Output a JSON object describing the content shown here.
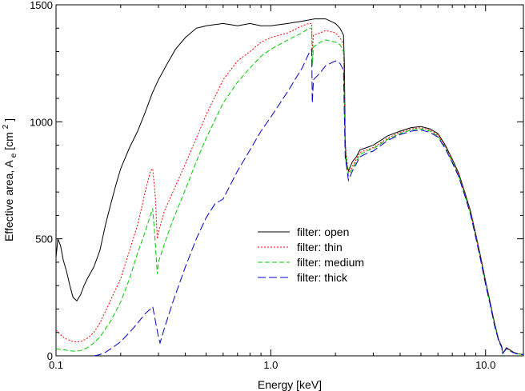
{
  "chart_data": {
    "type": "line",
    "title": "",
    "xlabel": "Energy [keV]",
    "ylabel": {
      "main": "Effective area, A",
      "sub": "e",
      "unit_open": " [cm",
      "sup": "2",
      "unit_close": "]"
    },
    "xscale": "log",
    "xlim": [
      0.1,
      15
    ],
    "ylim": [
      0,
      1500
    ],
    "x_ticks": [
      {
        "v": 0.1,
        "label": "0.1"
      },
      {
        "v": 1.0,
        "label": "1.0"
      },
      {
        "v": 10.0,
        "label": "10.0"
      }
    ],
    "y_ticks": [
      {
        "v": 0,
        "label": "0"
      },
      {
        "v": 500,
        "label": "500"
      },
      {
        "v": 1000,
        "label": "1000"
      },
      {
        "v": 1500,
        "label": "1500"
      }
    ],
    "grid": false,
    "legend_position": "center",
    "series": [
      {
        "name": "filter: open",
        "color": "#000000",
        "dash": "",
        "points": [
          [
            0.1,
            420
          ],
          [
            0.102,
            500
          ],
          [
            0.105,
            470
          ],
          [
            0.108,
            410
          ],
          [
            0.112,
            360
          ],
          [
            0.116,
            300
          ],
          [
            0.12,
            250
          ],
          [
            0.125,
            235
          ],
          [
            0.13,
            260
          ],
          [
            0.135,
            300
          ],
          [
            0.14,
            330
          ],
          [
            0.15,
            380
          ],
          [
            0.16,
            450
          ],
          [
            0.17,
            560
          ],
          [
            0.18,
            650
          ],
          [
            0.19,
            730
          ],
          [
            0.2,
            800
          ],
          [
            0.22,
            890
          ],
          [
            0.24,
            960
          ],
          [
            0.26,
            1040
          ],
          [
            0.28,
            1120
          ],
          [
            0.3,
            1180
          ],
          [
            0.33,
            1250
          ],
          [
            0.36,
            1310
          ],
          [
            0.4,
            1360
          ],
          [
            0.45,
            1400
          ],
          [
            0.5,
            1410
          ],
          [
            0.6,
            1420
          ],
          [
            0.7,
            1410
          ],
          [
            0.8,
            1420
          ],
          [
            0.9,
            1410
          ],
          [
            1.0,
            1410
          ],
          [
            1.2,
            1420
          ],
          [
            1.4,
            1430
          ],
          [
            1.6,
            1440
          ],
          [
            1.8,
            1440
          ],
          [
            2.0,
            1420
          ],
          [
            2.1,
            1400
          ],
          [
            2.18,
            1370
          ],
          [
            2.2,
            1250
          ],
          [
            2.22,
            930
          ],
          [
            2.24,
            830
          ],
          [
            2.3,
            790
          ],
          [
            2.4,
            830
          ],
          [
            2.5,
            850
          ],
          [
            2.6,
            880
          ],
          [
            2.8,
            890
          ],
          [
            3.0,
            900
          ],
          [
            3.5,
            940
          ],
          [
            4.0,
            960
          ],
          [
            4.5,
            975
          ],
          [
            5.0,
            980
          ],
          [
            5.5,
            970
          ],
          [
            6.0,
            950
          ],
          [
            6.5,
            900
          ],
          [
            7.0,
            840
          ],
          [
            7.5,
            780
          ],
          [
            8.0,
            700
          ],
          [
            8.5,
            620
          ],
          [
            9.0,
            520
          ],
          [
            9.5,
            420
          ],
          [
            10.0,
            320
          ],
          [
            10.5,
            230
          ],
          [
            11.0,
            140
          ],
          [
            11.5,
            70
          ],
          [
            11.9,
            40
          ],
          [
            12.0,
            10
          ],
          [
            12.5,
            35
          ],
          [
            13.0,
            25
          ],
          [
            13.5,
            15
          ],
          [
            14.0,
            10
          ],
          [
            15.0,
            5
          ]
        ]
      },
      {
        "name": "filter: thin",
        "color": "#ff0000",
        "dash": "2,2",
        "points": [
          [
            0.1,
            110
          ],
          [
            0.105,
            90
          ],
          [
            0.11,
            75
          ],
          [
            0.12,
            60
          ],
          [
            0.13,
            60
          ],
          [
            0.14,
            75
          ],
          [
            0.15,
            100
          ],
          [
            0.16,
            140
          ],
          [
            0.17,
            190
          ],
          [
            0.18,
            240
          ],
          [
            0.2,
            330
          ],
          [
            0.22,
            450
          ],
          [
            0.24,
            560
          ],
          [
            0.26,
            700
          ],
          [
            0.275,
            790
          ],
          [
            0.282,
            800
          ],
          [
            0.29,
            680
          ],
          [
            0.296,
            500
          ],
          [
            0.3,
            530
          ],
          [
            0.32,
            620
          ],
          [
            0.35,
            700
          ],
          [
            0.4,
            820
          ],
          [
            0.45,
            930
          ],
          [
            0.5,
            1030
          ],
          [
            0.6,
            1180
          ],
          [
            0.7,
            1260
          ],
          [
            0.8,
            1300
          ],
          [
            0.9,
            1340
          ],
          [
            1.0,
            1360
          ],
          [
            1.2,
            1380
          ],
          [
            1.4,
            1410
          ],
          [
            1.5,
            1420
          ],
          [
            1.55,
            1420
          ],
          [
            1.56,
            1300
          ],
          [
            1.58,
            1370
          ],
          [
            1.7,
            1380
          ],
          [
            1.8,
            1390
          ],
          [
            2.0,
            1380
          ],
          [
            2.1,
            1360
          ],
          [
            2.18,
            1330
          ],
          [
            2.22,
            900
          ],
          [
            2.3,
            780
          ],
          [
            2.4,
            810
          ],
          [
            2.5,
            840
          ],
          [
            2.6,
            870
          ],
          [
            2.8,
            880
          ],
          [
            3.0,
            890
          ],
          [
            3.5,
            930
          ],
          [
            4.0,
            955
          ],
          [
            4.5,
            970
          ],
          [
            5.0,
            975
          ],
          [
            5.5,
            965
          ],
          [
            6.0,
            945
          ],
          [
            6.5,
            895
          ],
          [
            7.0,
            835
          ],
          [
            7.5,
            775
          ],
          [
            8.0,
            695
          ],
          [
            8.5,
            615
          ],
          [
            9.0,
            515
          ],
          [
            9.5,
            415
          ],
          [
            10.0,
            315
          ],
          [
            10.5,
            225
          ],
          [
            11.0,
            135
          ],
          [
            11.5,
            68
          ],
          [
            11.9,
            38
          ],
          [
            12.0,
            10
          ],
          [
            12.5,
            33
          ],
          [
            13.0,
            23
          ],
          [
            13.5,
            14
          ],
          [
            14.0,
            9
          ],
          [
            15.0,
            5
          ]
        ]
      },
      {
        "name": "filter: medium",
        "color": "#00cc00",
        "dash": "6,3",
        "points": [
          [
            0.1,
            30
          ],
          [
            0.11,
            25
          ],
          [
            0.12,
            20
          ],
          [
            0.13,
            22
          ],
          [
            0.14,
            35
          ],
          [
            0.15,
            55
          ],
          [
            0.16,
            80
          ],
          [
            0.17,
            115
          ],
          [
            0.18,
            150
          ],
          [
            0.2,
            230
          ],
          [
            0.22,
            330
          ],
          [
            0.24,
            440
          ],
          [
            0.26,
            530
          ],
          [
            0.275,
            600
          ],
          [
            0.282,
            630
          ],
          [
            0.29,
            480
          ],
          [
            0.296,
            350
          ],
          [
            0.3,
            400
          ],
          [
            0.32,
            480
          ],
          [
            0.35,
            580
          ],
          [
            0.4,
            710
          ],
          [
            0.45,
            830
          ],
          [
            0.5,
            930
          ],
          [
            0.6,
            1080
          ],
          [
            0.7,
            1170
          ],
          [
            0.8,
            1230
          ],
          [
            0.9,
            1280
          ],
          [
            1.0,
            1310
          ],
          [
            1.2,
            1350
          ],
          [
            1.4,
            1380
          ],
          [
            1.5,
            1400
          ],
          [
            1.55,
            1400
          ],
          [
            1.56,
            1240
          ],
          [
            1.58,
            1320
          ],
          [
            1.7,
            1340
          ],
          [
            1.8,
            1350
          ],
          [
            2.0,
            1340
          ],
          [
            2.1,
            1330
          ],
          [
            2.18,
            1300
          ],
          [
            2.22,
            880
          ],
          [
            2.3,
            770
          ],
          [
            2.4,
            800
          ],
          [
            2.5,
            830
          ],
          [
            2.6,
            860
          ],
          [
            2.8,
            875
          ],
          [
            3.0,
            885
          ],
          [
            3.5,
            925
          ],
          [
            4.0,
            950
          ],
          [
            4.5,
            965
          ],
          [
            5.0,
            970
          ],
          [
            5.5,
            960
          ],
          [
            6.0,
            940
          ],
          [
            6.5,
            890
          ],
          [
            7.0,
            830
          ],
          [
            7.5,
            770
          ],
          [
            8.0,
            690
          ],
          [
            8.5,
            610
          ],
          [
            9.0,
            510
          ],
          [
            9.5,
            410
          ],
          [
            10.0,
            310
          ],
          [
            10.5,
            222
          ],
          [
            11.0,
            132
          ],
          [
            11.5,
            66
          ],
          [
            11.9,
            36
          ],
          [
            12.0,
            9
          ],
          [
            12.5,
            32
          ],
          [
            13.0,
            22
          ],
          [
            13.5,
            13
          ],
          [
            14.0,
            9
          ],
          [
            15.0,
            5
          ]
        ]
      },
      {
        "name": "filter: thick",
        "color": "#0000cc",
        "dash": "10,4",
        "points": [
          [
            0.15,
            0
          ],
          [
            0.16,
            5
          ],
          [
            0.17,
            15
          ],
          [
            0.18,
            30
          ],
          [
            0.2,
            60
          ],
          [
            0.22,
            100
          ],
          [
            0.24,
            140
          ],
          [
            0.26,
            180
          ],
          [
            0.275,
            200
          ],
          [
            0.282,
            210
          ],
          [
            0.29,
            150
          ],
          [
            0.3,
            80
          ],
          [
            0.305,
            55
          ],
          [
            0.32,
            120
          ],
          [
            0.35,
            230
          ],
          [
            0.4,
            380
          ],
          [
            0.45,
            500
          ],
          [
            0.5,
            590
          ],
          [
            0.55,
            650
          ],
          [
            0.6,
            670
          ],
          [
            0.7,
            790
          ],
          [
            0.8,
            880
          ],
          [
            0.9,
            960
          ],
          [
            1.0,
            1020
          ],
          [
            1.2,
            1130
          ],
          [
            1.4,
            1230
          ],
          [
            1.5,
            1290
          ],
          [
            1.55,
            1310
          ],
          [
            1.56,
            1080
          ],
          [
            1.58,
            1180
          ],
          [
            1.7,
            1210
          ],
          [
            1.8,
            1240
          ],
          [
            2.0,
            1260
          ],
          [
            2.1,
            1250
          ],
          [
            2.18,
            1220
          ],
          [
            2.22,
            850
          ],
          [
            2.3,
            750
          ],
          [
            2.4,
            790
          ],
          [
            2.5,
            820
          ],
          [
            2.6,
            850
          ],
          [
            2.8,
            865
          ],
          [
            3.0,
            875
          ],
          [
            3.5,
            920
          ],
          [
            4.0,
            945
          ],
          [
            4.5,
            960
          ],
          [
            5.0,
            965
          ],
          [
            5.5,
            955
          ],
          [
            6.0,
            935
          ],
          [
            6.5,
            885
          ],
          [
            7.0,
            825
          ],
          [
            7.5,
            765
          ],
          [
            8.0,
            685
          ],
          [
            8.5,
            605
          ],
          [
            9.0,
            505
          ],
          [
            9.5,
            405
          ],
          [
            10.0,
            305
          ],
          [
            10.5,
            220
          ],
          [
            11.0,
            130
          ],
          [
            11.5,
            65
          ],
          [
            11.9,
            35
          ],
          [
            12.0,
            9
          ],
          [
            12.5,
            31
          ],
          [
            13.0,
            21
          ],
          [
            13.5,
            13
          ],
          [
            14.0,
            8
          ],
          [
            15.0,
            5
          ]
        ]
      }
    ]
  }
}
